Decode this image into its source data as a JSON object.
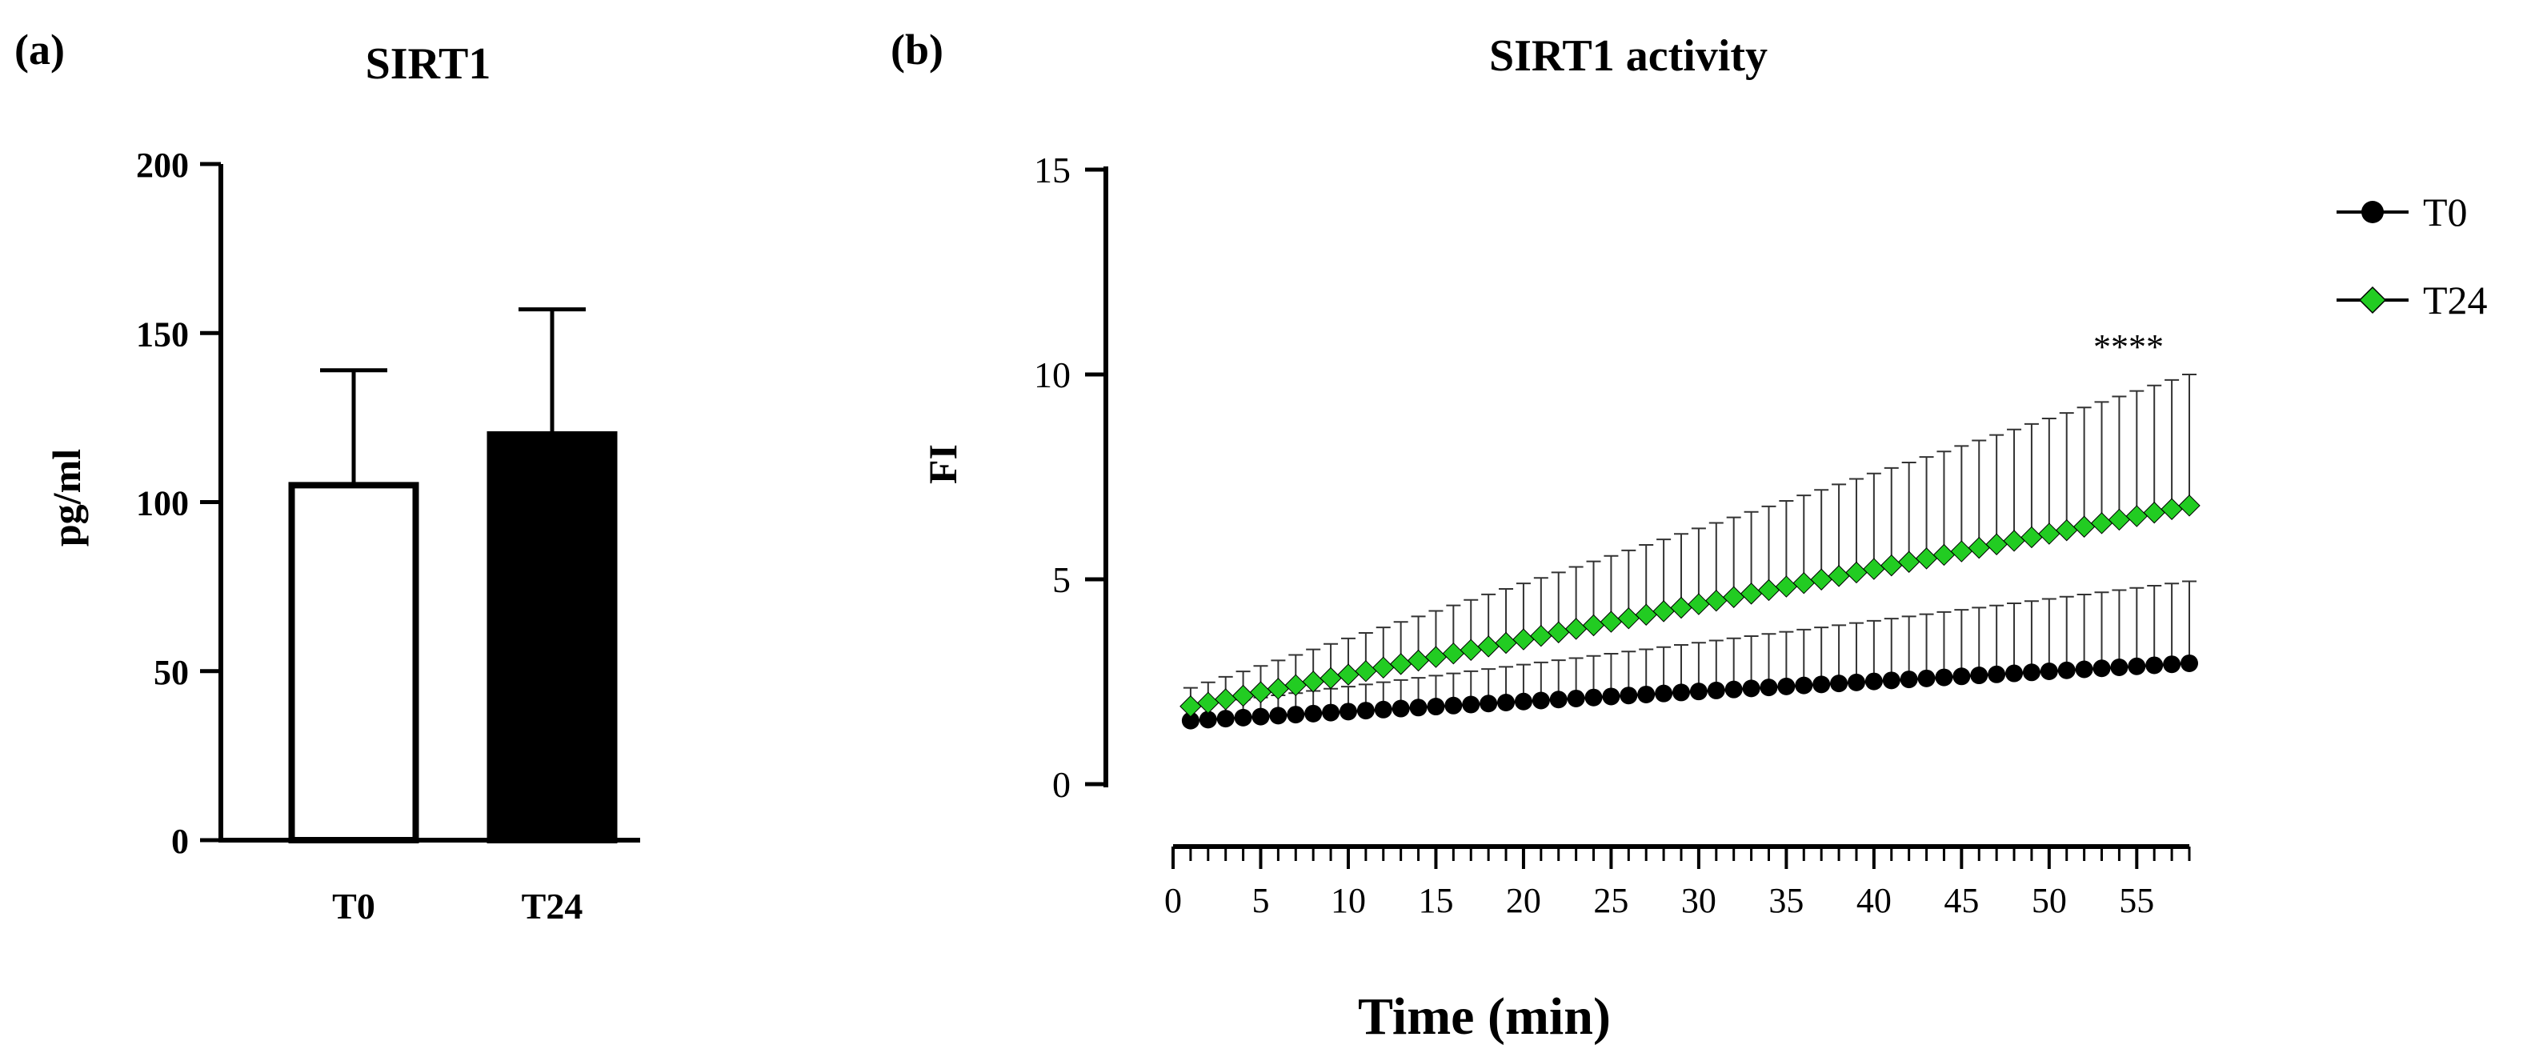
{
  "panels": {
    "a": {
      "label": "(a)"
    },
    "b": {
      "label": "(b)"
    }
  },
  "chart_data": [
    {
      "type": "bar",
      "title": "SIRT1",
      "xlabel": "",
      "ylabel": "pg/ml",
      "ylim": [
        0,
        200
      ],
      "yticks": [
        "0",
        "50",
        "100",
        "150",
        "200"
      ],
      "categories": [
        "T0",
        "T24"
      ],
      "values": [
        105,
        120
      ],
      "error_upper": [
        139,
        157
      ],
      "bar_fills": [
        "#ffffff",
        "#000000"
      ]
    },
    {
      "type": "line",
      "title": "SIRT1 activity",
      "xlabel": "Time (min)",
      "ylabel": "FI",
      "ylim": [
        0,
        15
      ],
      "xlim": [
        0,
        58
      ],
      "yticks": [
        "0",
        "5",
        "10",
        "15"
      ],
      "xticks": [
        "0",
        "5",
        "10",
        "15",
        "20",
        "25",
        "30",
        "35",
        "40",
        "45",
        "50",
        "55"
      ],
      "annotation": "****",
      "series": [
        {
          "name": "T0",
          "color": "#000000",
          "marker": "circle",
          "x": [
            1,
            58
          ],
          "y_start": 1.55,
          "y_end": 2.95,
          "err_start": 0.35,
          "err_end": 2.0
        },
        {
          "name": "T24",
          "color": "#22cc22",
          "marker": "diamond",
          "x": [
            1,
            58
          ],
          "y_start": 1.9,
          "y_end": 6.8,
          "err_start": 0.45,
          "err_end": 3.2
        }
      ]
    }
  ]
}
